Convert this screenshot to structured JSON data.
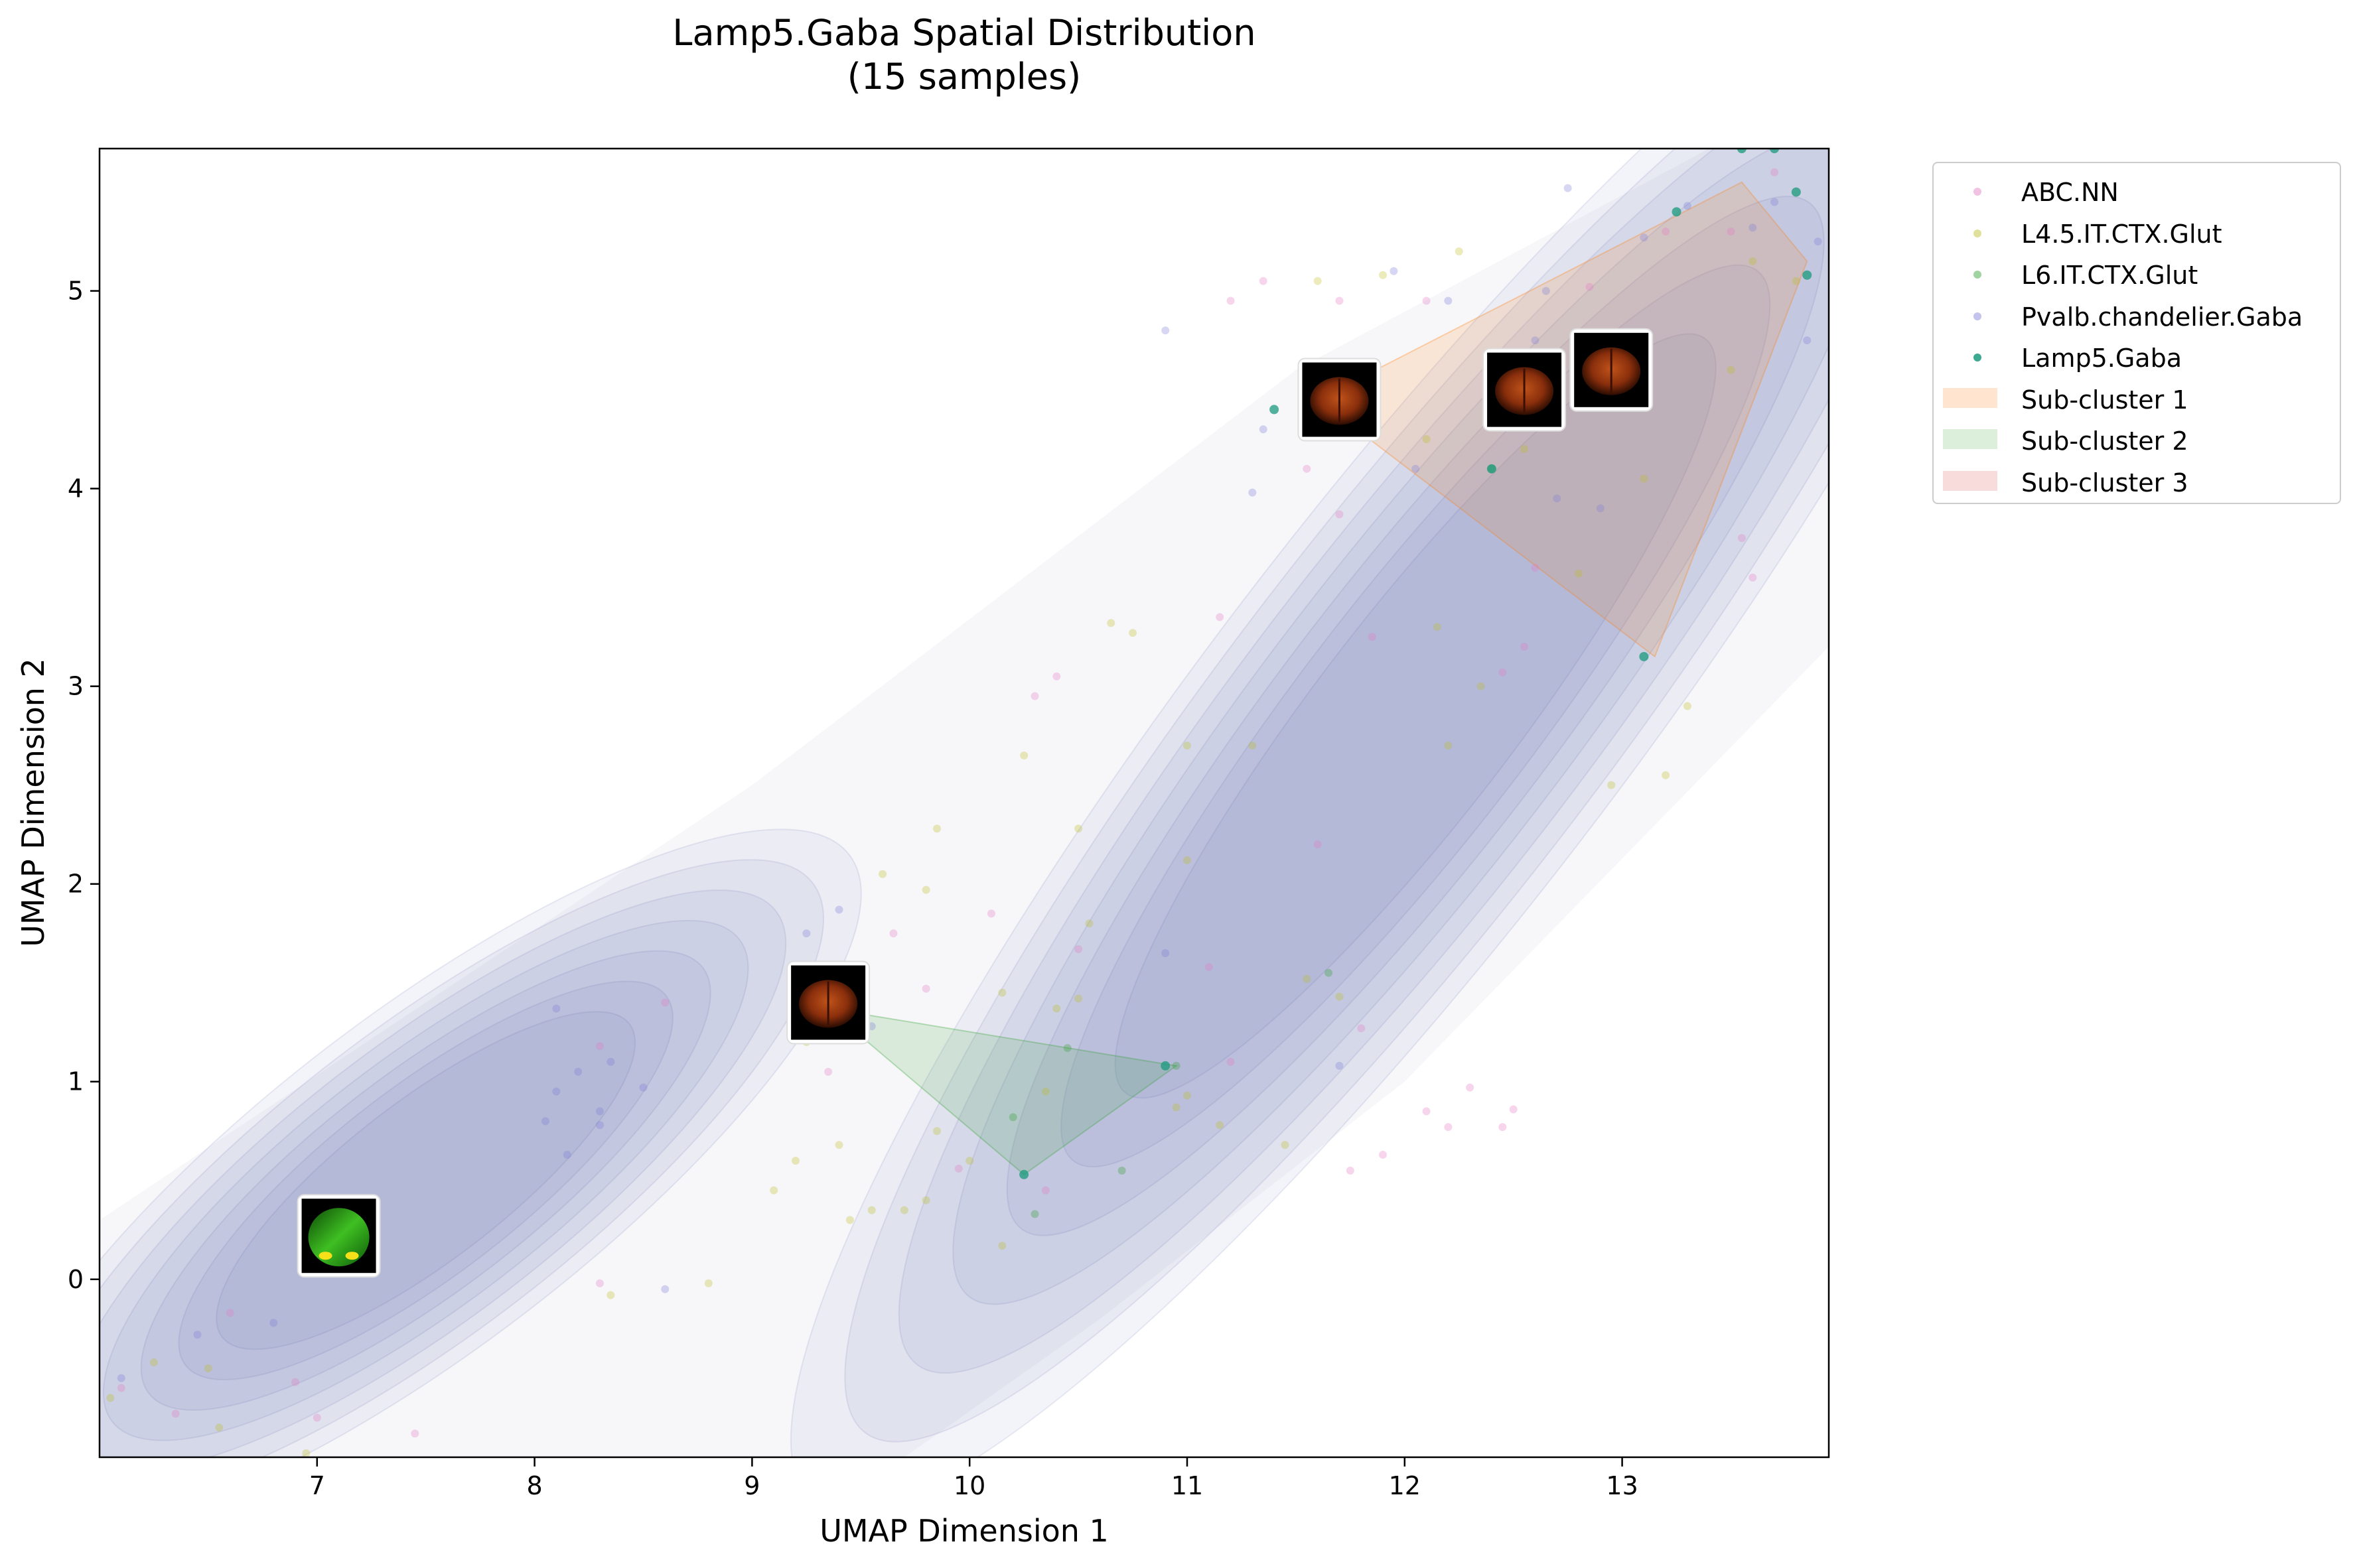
{
  "chart_data": {
    "type": "scatter",
    "title": "Lamp5.Gaba Spatial Distribution\n(15 samples)",
    "title_lines": [
      "Lamp5.Gaba Spatial Distribution",
      "(15 samples)"
    ],
    "xlabel": "UMAP Dimension 1",
    "ylabel": "UMAP Dimension 2",
    "xlim": [
      6.0,
      13.95
    ],
    "ylim": [
      -0.9,
      5.72
    ],
    "xticks": [
      7,
      8,
      9,
      10,
      11,
      12,
      13
    ],
    "yticks": [
      0,
      1,
      2,
      3,
      4,
      5
    ],
    "grid": false,
    "legend_position": "outside upper right",
    "density": {
      "description_colors": "KDE contour bands",
      "color": "#5b5ea6",
      "ridges": [
        {
          "start": [
            6.2,
            -0.6
          ],
          "end": [
            8.8,
            1.6
          ]
        },
        {
          "start": [
            10.2,
            0.2
          ],
          "end": [
            13.9,
            5.5
          ]
        }
      ]
    },
    "series": [
      {
        "name": "ABC.NN",
        "color": "#e377c2",
        "points": [
          [
            6.1,
            -0.55
          ],
          [
            6.35,
            -0.68
          ],
          [
            6.6,
            -0.17
          ],
          [
            6.9,
            -0.52
          ],
          [
            7.0,
            -0.7
          ],
          [
            7.45,
            -0.78
          ],
          [
            8.3,
            -0.02
          ],
          [
            8.6,
            1.4
          ],
          [
            8.3,
            1.18
          ],
          [
            9.35,
            1.05
          ],
          [
            9.8,
            1.47
          ],
          [
            9.65,
            1.75
          ],
          [
            10.1,
            1.85
          ],
          [
            10.5,
            1.67
          ],
          [
            11.1,
            1.58
          ],
          [
            11.6,
            2.2
          ],
          [
            11.2,
            1.1
          ],
          [
            11.8,
            1.27
          ],
          [
            11.75,
            0.55
          ],
          [
            11.9,
            0.63
          ],
          [
            12.1,
            0.85
          ],
          [
            12.2,
            0.77
          ],
          [
            12.3,
            0.97
          ],
          [
            12.45,
            0.77
          ],
          [
            12.5,
            0.86
          ],
          [
            10.35,
            0.45
          ],
          [
            9.95,
            0.56
          ],
          [
            10.3,
            2.95
          ],
          [
            10.4,
            3.05
          ],
          [
            11.15,
            3.35
          ],
          [
            11.7,
            3.87
          ],
          [
            11.55,
            4.1
          ],
          [
            11.85,
            3.25
          ],
          [
            11.2,
            4.95
          ],
          [
            11.35,
            5.05
          ],
          [
            11.7,
            4.95
          ],
          [
            12.1,
            4.95
          ],
          [
            12.45,
            3.07
          ],
          [
            12.6,
            3.6
          ],
          [
            12.55,
            3.2
          ],
          [
            12.85,
            5.02
          ],
          [
            13.2,
            5.3
          ],
          [
            13.5,
            5.3
          ],
          [
            13.55,
            3.75
          ],
          [
            13.6,
            3.55
          ],
          [
            13.7,
            5.6
          ]
        ]
      },
      {
        "name": "L4.5.IT.CTX.Glut",
        "color": "#bcbd22",
        "points": [
          [
            6.05,
            -0.6
          ],
          [
            6.25,
            -0.42
          ],
          [
            6.5,
            -0.45
          ],
          [
            6.55,
            -0.75
          ],
          [
            6.95,
            -0.88
          ],
          [
            8.35,
            -0.08
          ],
          [
            8.8,
            -0.02
          ],
          [
            9.1,
            0.45
          ],
          [
            9.2,
            0.6
          ],
          [
            9.25,
            1.2
          ],
          [
            9.4,
            0.68
          ],
          [
            9.45,
            0.3
          ],
          [
            9.55,
            0.35
          ],
          [
            9.7,
            0.35
          ],
          [
            9.8,
            0.4
          ],
          [
            9.85,
            0.75
          ],
          [
            10.15,
            0.17
          ],
          [
            10.15,
            1.45
          ],
          [
            10.35,
            0.95
          ],
          [
            10.4,
            1.37
          ],
          [
            10.5,
            1.42
          ],
          [
            10.55,
            1.8
          ],
          [
            10.5,
            2.28
          ],
          [
            10.25,
            2.65
          ],
          [
            9.6,
            2.05
          ],
          [
            9.8,
            1.97
          ],
          [
            9.85,
            2.28
          ],
          [
            10.0,
            0.6
          ],
          [
            10.95,
            0.87
          ],
          [
            11.0,
            0.93
          ],
          [
            11.0,
            2.12
          ],
          [
            11.15,
            0.78
          ],
          [
            11.45,
            0.68
          ],
          [
            11.55,
            1.52
          ],
          [
            11.7,
            1.43
          ],
          [
            10.65,
            3.32
          ],
          [
            10.75,
            3.27
          ],
          [
            11.0,
            2.7
          ],
          [
            11.3,
            2.7
          ],
          [
            11.85,
            4.5
          ],
          [
            11.6,
            5.05
          ],
          [
            11.9,
            5.08
          ],
          [
            12.1,
            4.25
          ],
          [
            12.15,
            3.3
          ],
          [
            12.2,
            2.7
          ],
          [
            12.25,
            5.2
          ],
          [
            12.35,
            3.0
          ],
          [
            12.55,
            4.2
          ],
          [
            12.8,
            3.57
          ],
          [
            12.95,
            2.5
          ],
          [
            13.1,
            4.05
          ],
          [
            13.2,
            2.55
          ],
          [
            13.3,
            2.9
          ],
          [
            13.5,
            4.6
          ],
          [
            13.6,
            5.15
          ],
          [
            13.8,
            5.05
          ]
        ]
      },
      {
        "name": "L6.IT.CTX.Glut",
        "color": "#2ca02c",
        "points": [
          [
            10.2,
            0.82
          ],
          [
            10.45,
            1.17
          ],
          [
            10.3,
            0.33
          ],
          [
            10.95,
            1.08
          ],
          [
            11.65,
            1.55
          ],
          [
            10.7,
            0.55
          ],
          [
            12.4,
            4.1
          ]
        ]
      },
      {
        "name": "Pvalb.chandelier.Gaba",
        "color": "#7b7bd6",
        "points": [
          [
            6.1,
            -0.5
          ],
          [
            6.45,
            -0.28
          ],
          [
            6.8,
            -0.22
          ],
          [
            8.05,
            0.8
          ],
          [
            8.1,
            0.95
          ],
          [
            8.15,
            0.63
          ],
          [
            8.2,
            1.05
          ],
          [
            8.3,
            0.85
          ],
          [
            8.3,
            0.78
          ],
          [
            8.35,
            1.1
          ],
          [
            8.1,
            1.37
          ],
          [
            8.5,
            0.97
          ],
          [
            8.6,
            -0.05
          ],
          [
            9.25,
            1.75
          ],
          [
            9.4,
            1.87
          ],
          [
            9.55,
            1.28
          ],
          [
            10.9,
            1.65
          ],
          [
            11.7,
            1.08
          ],
          [
            10.9,
            4.8
          ],
          [
            11.3,
            3.98
          ],
          [
            11.35,
            4.3
          ],
          [
            11.65,
            4.6
          ],
          [
            11.95,
            5.1
          ],
          [
            12.05,
            4.1
          ],
          [
            12.2,
            4.95
          ],
          [
            12.6,
            4.75
          ],
          [
            12.65,
            5.0
          ],
          [
            12.7,
            3.95
          ],
          [
            12.75,
            5.52
          ],
          [
            12.9,
            3.9
          ],
          [
            13.1,
            5.27
          ],
          [
            13.3,
            5.43
          ],
          [
            13.6,
            5.32
          ],
          [
            13.7,
            5.45
          ],
          [
            13.85,
            4.75
          ],
          [
            13.9,
            5.25
          ]
        ]
      },
      {
        "name": "Lamp5.Gaba",
        "color": "#1a9a7c",
        "points": [
          [
            7.0,
            0.23
          ],
          [
            9.35,
            1.37
          ],
          [
            10.25,
            0.53
          ],
          [
            10.9,
            1.08
          ],
          [
            11.4,
            4.4
          ],
          [
            11.85,
            4.55
          ],
          [
            12.4,
            4.1
          ],
          [
            12.55,
            4.52
          ],
          [
            12.95,
            4.65
          ],
          [
            13.1,
            3.15
          ],
          [
            13.25,
            5.4
          ],
          [
            13.55,
            5.72
          ],
          [
            13.7,
            5.72
          ],
          [
            13.8,
            5.5
          ],
          [
            13.85,
            5.08
          ]
        ]
      }
    ],
    "subclusters": [
      {
        "name": "Sub-cluster 1",
        "color": "#ff7f0e",
        "polygon": [
          [
            11.6,
            4.45
          ],
          [
            13.55,
            5.55
          ],
          [
            13.85,
            5.15
          ],
          [
            13.15,
            3.15
          ]
        ]
      },
      {
        "name": "Sub-cluster 2",
        "color": "#2ca02c",
        "polygon": [
          [
            9.35,
            1.37
          ],
          [
            10.95,
            1.08
          ],
          [
            10.25,
            0.53
          ]
        ]
      },
      {
        "name": "Sub-cluster 3",
        "color": "#d62728",
        "polygon": []
      }
    ],
    "image_markers": [
      {
        "x": 7.1,
        "y": 0.22,
        "style": "green"
      },
      {
        "x": 9.35,
        "y": 1.4,
        "style": "orange"
      },
      {
        "x": 11.7,
        "y": 4.45,
        "style": "orange"
      },
      {
        "x": 12.55,
        "y": 4.5,
        "style": "orange"
      },
      {
        "x": 12.95,
        "y": 4.6,
        "style": "orange"
      }
    ]
  },
  "legend": {
    "items": [
      {
        "label": "ABC.NN",
        "kind": "dot",
        "color": "#e377c2",
        "alpha": 0.3
      },
      {
        "label": "L4.5.IT.CTX.Glut",
        "kind": "dot",
        "color": "#bcbd22",
        "alpha": 0.3
      },
      {
        "label": "L6.IT.CTX.Glut",
        "kind": "dot",
        "color": "#2ca02c",
        "alpha": 0.3
      },
      {
        "label": "Pvalb.chandelier.Gaba",
        "kind": "dot",
        "color": "#7b7bd6",
        "alpha": 0.3
      },
      {
        "label": "Lamp5.Gaba",
        "kind": "dot",
        "color": "#1a9a7c",
        "alpha": 0.75
      },
      {
        "label": "Sub-cluster 1",
        "kind": "patch",
        "color": "#ff7f0e",
        "alpha": 0.15
      },
      {
        "label": "Sub-cluster 2",
        "kind": "patch",
        "color": "#2ca02c",
        "alpha": 0.12
      },
      {
        "label": "Sub-cluster 3",
        "kind": "patch",
        "color": "#d62728",
        "alpha": 0.12
      }
    ]
  }
}
